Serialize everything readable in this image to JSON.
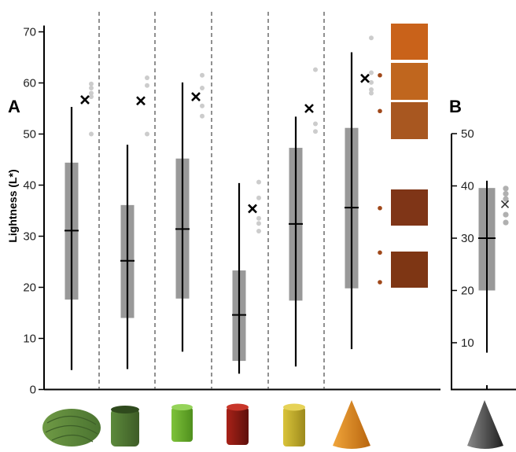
{
  "chart_data": [
    {
      "panel_label": "A",
      "type": "box",
      "ylabel": "Lightness (L*)",
      "ylim": [
        0,
        70
      ],
      "yticks": [
        0,
        10,
        20,
        30,
        40,
        50,
        60,
        70
      ],
      "grid": false,
      "categories": [
        "yarn ball",
        "yarn spool",
        "green candle",
        "red candle",
        "yellow candle",
        "orange cone"
      ],
      "series": [
        {
          "whisker_low": 3.8,
          "q1": 17.6,
          "median": 31.1,
          "q3": 44.4,
          "whisker_high": 55.3,
          "cross": 56.7,
          "dots": [
            59.8,
            59.0,
            58.0,
            57.3,
            50.0
          ]
        },
        {
          "whisker_low": 4.0,
          "q1": 14.0,
          "median": 25.2,
          "q3": 36.1,
          "whisker_high": 47.9,
          "cross": 56.5,
          "dots": [
            61.0,
            59.5,
            50.0
          ]
        },
        {
          "whisker_low": 7.4,
          "q1": 17.8,
          "median": 31.4,
          "q3": 45.2,
          "whisker_high": 60.1,
          "cross": 57.3,
          "dots": [
            61.5,
            59.0,
            55.5,
            53.5
          ]
        },
        {
          "whisker_low": 3.1,
          "q1": 5.6,
          "median": 14.6,
          "q3": 23.3,
          "whisker_high": 40.4,
          "cross": 35.4,
          "dots": [
            40.6,
            37.5,
            33.5,
            32.5,
            31.0
          ]
        },
        {
          "whisker_low": 4.5,
          "q1": 17.4,
          "median": 32.4,
          "q3": 47.3,
          "whisker_high": 53.4,
          "cross": 55.0,
          "dots": [
            62.6,
            52.0,
            50.5
          ]
        },
        {
          "whisker_low": 7.9,
          "q1": 19.8,
          "median": 35.6,
          "q3": 51.2,
          "whisker_high": 66.0,
          "cross": 60.9,
          "dots": [
            68.8,
            62.0,
            60.1,
            58.7,
            58.0
          ]
        }
      ],
      "palette": {
        "swatches": [
          "#c9621a",
          "#c0661e",
          "#a85720",
          "#7f3517",
          "#7e3614"
        ],
        "swatch_levels": [
          61.5,
          54.5,
          35.5,
          26.8,
          21.0
        ],
        "dot_color": "#a0481a"
      }
    },
    {
      "panel_label": "B",
      "type": "box",
      "ylim": [
        5,
        50
      ],
      "yticks": [
        10,
        20,
        30,
        40,
        50
      ],
      "categories": [
        "grey cone"
      ],
      "series": [
        {
          "whisker_low": 8.1,
          "q1": 20.0,
          "median": 30.0,
          "q3": 39.6,
          "whisker_high": 41.0,
          "cross": 36.5,
          "dots": [
            39.5,
            38.5,
            37.5,
            34.5,
            33.0
          ]
        }
      ]
    }
  ],
  "colors": {
    "box": "#999999",
    "line": "#000000",
    "outlier": "#cccccc",
    "outlier_b": "#b0b0b0",
    "divider": "#555555"
  },
  "objects": [
    {
      "name": "yarn-ball-icon",
      "colors": [
        "#6f9a45",
        "#4a7330"
      ]
    },
    {
      "name": "yarn-spool-icon",
      "colors": [
        "#5c8a3c",
        "#3e5c26"
      ]
    },
    {
      "name": "green-candle-icon",
      "colors": [
        "#7ec23a",
        "#4f8f1d"
      ]
    },
    {
      "name": "red-candle-icon",
      "colors": [
        "#a82218",
        "#5e0f0b"
      ]
    },
    {
      "name": "yellow-candle-icon",
      "colors": [
        "#d9c33a",
        "#9d8a1c"
      ]
    },
    {
      "name": "orange-cone-icon",
      "colors": [
        "#f0a53b",
        "#b8650e"
      ]
    },
    {
      "name": "grey-cone-icon",
      "colors": [
        "#8a8a8a",
        "#1e1e1e"
      ]
    }
  ]
}
